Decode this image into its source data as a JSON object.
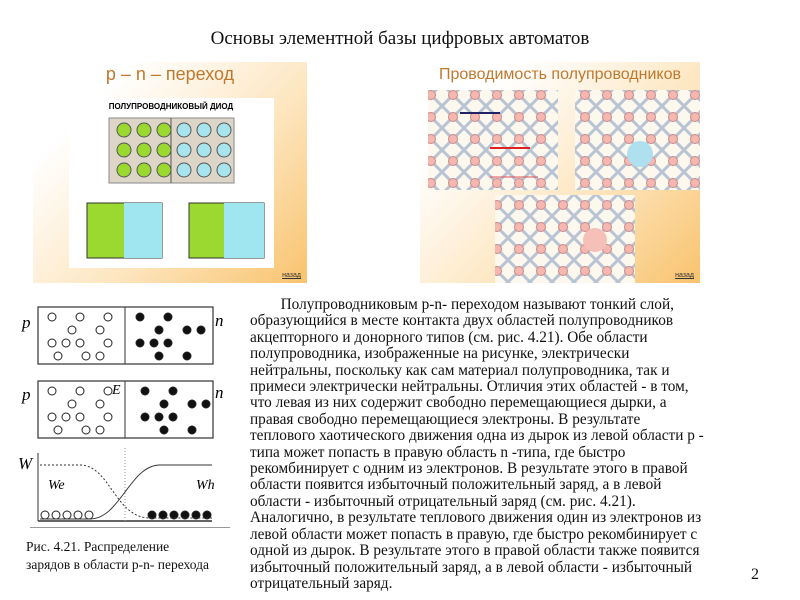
{
  "title": "Основы элементной базы цифровых автоматов",
  "panel_left": {
    "title": "p – n – переход",
    "subtitle": "ПОЛУПРОВОДНИКОВЫЙ ДИОД",
    "back_link": "назад"
  },
  "panel_right": {
    "title": "Проводимость полупроводников",
    "back_link": "назад"
  },
  "figure": {
    "label_p": "p",
    "label_n": "n",
    "label_E": "E",
    "label_W": "W",
    "label_We": "We",
    "label_Wh": "Wh"
  },
  "caption": [
    "Рис. 4.21. Распределение",
    "зарядов в области p-n- перехода"
  ],
  "body_lines": [
    "        Полупроводниковым p-n- переходом называют тонкий слой,",
    "образующийся в месте контакта двух областей полупроводников",
    "акцепторного и донорного типов (см. рис. 4.21). Обе области",
    "полупроводника, изображенные на рисунке, электрически",
    "нейтральны, поскольку как сам материал полупроводника, так и",
    "примеси электрически нейтральны. Отличия этих областей - в том,",
    "что левая из них содержит свободно перемещающиеся дырки, а",
    "правая свободно перемещающиеся электроны. В результате",
    "теплового хаотического движения одна из дырок из левой области p -",
    "типа может попасть в правую область n -типа, где быстро",
    "рекомбинирует с одним из электронов. В результате этого в правой",
    "области появится избыточный положительный заряд, а в левой",
    "области - избыточный отрицательный заряд (см. рис. 4.21).",
    "Аналогично, в результате теплового движения один из электронов из",
    "левой области может попасть в правую, где быстро рекомбинирует с",
    "одной из дырок. В результате этого в правой области также появится",
    "избыточный положительный заряд, а в левой области - избыточный",
    "отрицательный заряд."
  ],
  "page_number": "2"
}
